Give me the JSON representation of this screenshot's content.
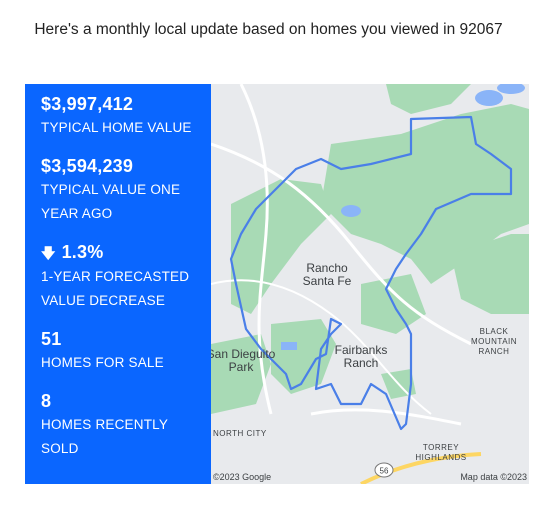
{
  "headline": "Here's a monthly local update based on homes you viewed in 92067",
  "stats": [
    {
      "value": "$3,997,412",
      "label": "TYPICAL HOME VALUE"
    },
    {
      "value": "$3,594,239",
      "label": "TYPICAL VALUE ONE YEAR AGO"
    },
    {
      "value": "1.3%",
      "label": "1-YEAR FORECASTED VALUE DECREASE",
      "icon": "arrow-down-icon"
    },
    {
      "value": "51",
      "label": "HOMES FOR SALE"
    },
    {
      "value": "8",
      "label": "HOMES RECENTLY SOLD"
    }
  ],
  "map": {
    "labels": {
      "rancho_santa_fe": "Rancho\nSanta Fe",
      "fairbanks_ranch": "Fairbanks\nRanch",
      "san_dieguito_park": "San Dieguito\nPark",
      "black_mountain_ranch": "BLACK\nMOUNTAIN\nRANCH",
      "north_city": "NORTH CITY",
      "torrey_highlands": "TORREY\nHIGHLANDS",
      "highway": "56"
    },
    "attribution_left": "©2023 Google",
    "attribution_right": "Map data ©2023",
    "colors": {
      "land": "#e8eaed",
      "park": "#a8dab5",
      "water": "#8ab4f8",
      "boundary": "#4a7fe8",
      "road": "#ffffff",
      "highway": "#fdd663"
    }
  }
}
